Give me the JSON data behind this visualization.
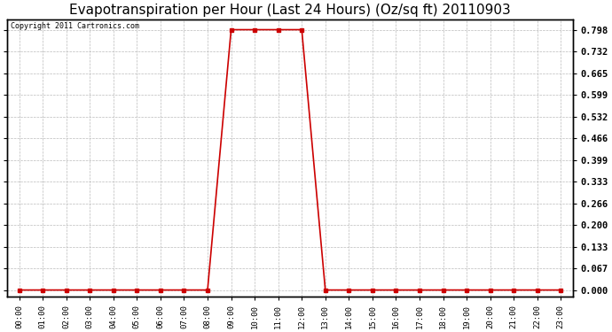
{
  "title": "Evapotranspiration per Hour (Last 24 Hours) (Oz/sq ft) 20110903",
  "copyright_text": "Copyright 2011 Cartronics.com",
  "hours": [
    "00:00",
    "01:00",
    "02:00",
    "03:00",
    "04:00",
    "05:00",
    "06:00",
    "07:00",
    "08:00",
    "09:00",
    "10:00",
    "11:00",
    "12:00",
    "13:00",
    "14:00",
    "15:00",
    "16:00",
    "17:00",
    "18:00",
    "19:00",
    "20:00",
    "21:00",
    "22:00",
    "23:00"
  ],
  "values": [
    0.0,
    0.0,
    0.0,
    0.0,
    0.0,
    0.0,
    0.0,
    0.0,
    0.0,
    0.798,
    0.798,
    0.798,
    0.798,
    0.0,
    0.0,
    0.0,
    0.0,
    0.0,
    0.0,
    0.0,
    0.0,
    0.0,
    0.0,
    0.0
  ],
  "line_color": "#cc0000",
  "marker_color": "#cc0000",
  "grid_color": "#bbbbbb",
  "bg_color": "#ffffff",
  "plot_bg_color": "#ffffff",
  "ylim_min": -0.02,
  "ylim_max": 0.83,
  "yticks": [
    0.0,
    0.067,
    0.133,
    0.2,
    0.266,
    0.333,
    0.399,
    0.466,
    0.532,
    0.599,
    0.665,
    0.732,
    0.798
  ],
  "title_fontsize": 11,
  "copyright_fontsize": 6,
  "tick_fontsize": 7.5,
  "xtick_fontsize": 6.5
}
